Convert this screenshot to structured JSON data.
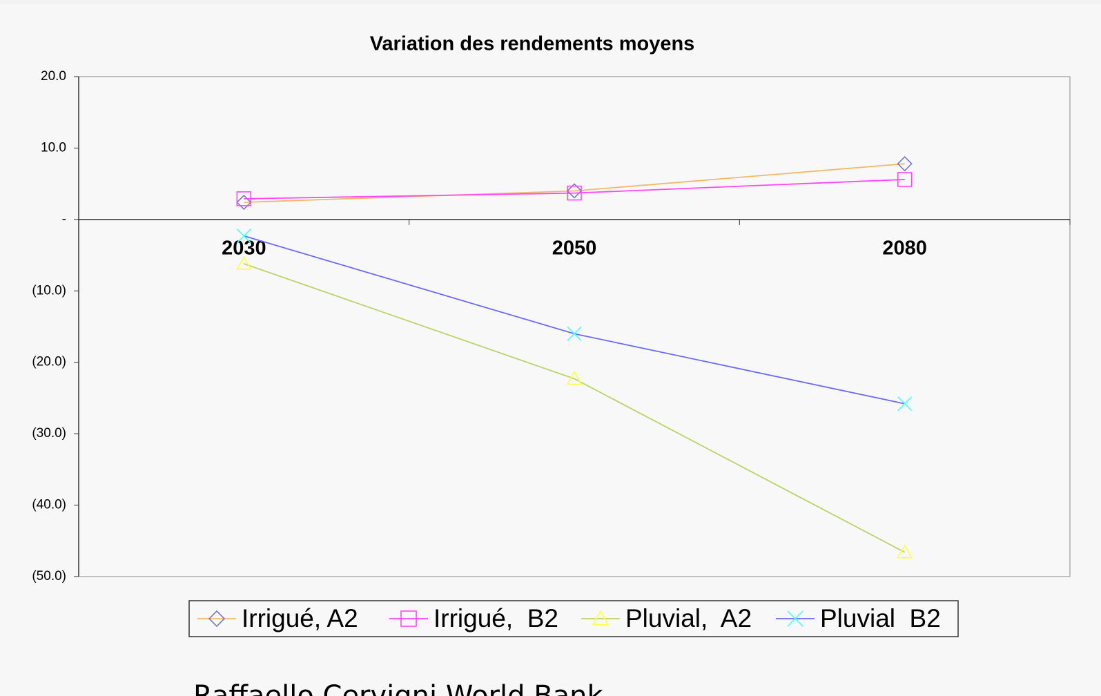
{
  "chart_data": {
    "type": "line",
    "title": "Variation des rendements moyens",
    "categories": [
      "2030",
      "2050",
      "2080"
    ],
    "series": [
      {
        "name": "Irrigué, A2",
        "color": "#f4b86a",
        "marker": "diamond",
        "marker_color": "#7878c8",
        "values": [
          2.4,
          4.0,
          7.8
        ]
      },
      {
        "name": "Irrigué,  B2",
        "color": "#ff44ff",
        "marker": "square",
        "marker_color": "#ff44ff",
        "values": [
          2.9,
          3.7,
          5.6
        ]
      },
      {
        "name": "Pluvial,  A2",
        "color": "#b8d46a",
        "marker": "triangle",
        "marker_color": "#ffff44",
        "values": [
          -6.2,
          -22.3,
          -46.6
        ]
      },
      {
        "name": "Pluvial  B2",
        "color": "#6a6aff",
        "marker": "x",
        "marker_color": "#44ffff",
        "values": [
          -2.3,
          -16.0,
          -25.8
        ]
      }
    ],
    "ylim": [
      -50,
      20
    ],
    "yticks": [
      {
        "value": 20,
        "label": "20.0"
      },
      {
        "value": 10,
        "label": "10.0"
      },
      {
        "value": 0,
        "label": "-"
      },
      {
        "value": -10,
        "label": "(10.0)"
      },
      {
        "value": -20,
        "label": "(20.0)"
      },
      {
        "value": -30,
        "label": "(30.0)"
      },
      {
        "value": -40,
        "label": "(40.0)"
      },
      {
        "value": -50,
        "label": "(50.0)"
      }
    ],
    "legend": "bottom",
    "source": "Raffaello Cervigni World Bank"
  }
}
